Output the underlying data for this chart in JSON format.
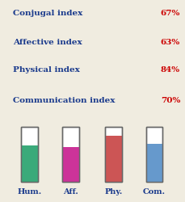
{
  "labels": [
    "Conjugal index",
    "Affective index",
    "Physical index",
    "Communication index"
  ],
  "percentages": [
    67,
    63,
    84,
    70
  ],
  "label_color": "#1a3a8c",
  "value_color": "#cc0000",
  "bar_labels": [
    "Hum.",
    "Aff.",
    "Phy.",
    "Com."
  ],
  "bar_colors": [
    "#3aaa7a",
    "#cc3399",
    "#cc5555",
    "#6699cc"
  ],
  "bar_values": [
    0.67,
    0.63,
    0.84,
    0.7
  ],
  "bg_color": "#f0ece0",
  "label_fontsize": 7.5,
  "value_fontsize": 7.5,
  "bar_label_fontsize": 7.0
}
